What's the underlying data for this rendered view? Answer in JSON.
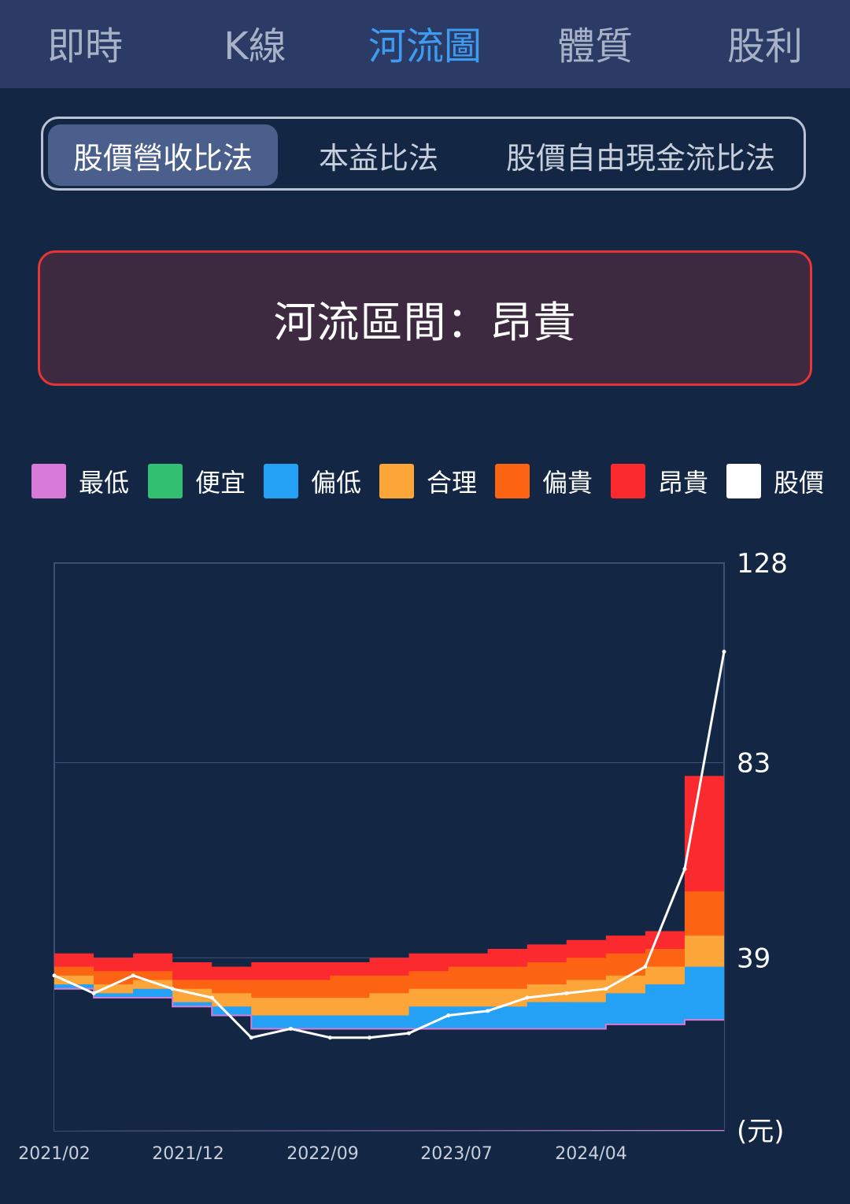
{
  "tabs": [
    {
      "label": "即時",
      "active": false
    },
    {
      "label": "K線",
      "active": false
    },
    {
      "label": "河流圖",
      "active": true
    },
    {
      "label": "體質",
      "active": false
    },
    {
      "label": "股利",
      "active": false
    }
  ],
  "methods": [
    {
      "label": "股價營收比法",
      "active": true
    },
    {
      "label": "本益比法",
      "active": false
    },
    {
      "label": "股價自由現金流比法",
      "active": false
    }
  ],
  "zone": {
    "text": "河流區間：昂貴"
  },
  "legend": [
    {
      "label": "最低",
      "color": "#d77ad8"
    },
    {
      "label": "便宜",
      "color": "#33bf72"
    },
    {
      "label": "偏低",
      "color": "#24a1f5"
    },
    {
      "label": "合理",
      "color": "#fca538"
    },
    {
      "label": "偏貴",
      "color": "#fc6313"
    },
    {
      "label": "昂貴",
      "color": "#fb2a2e"
    },
    {
      "label": "股價",
      "color": "#ffffff"
    }
  ],
  "chart_data": {
    "type": "area",
    "y_unit": "(元)",
    "ylim": [
      0,
      128
    ],
    "y_ticks": [
      128,
      83,
      39
    ],
    "x_ticks": [
      "2021/02",
      "2021/12",
      "2022/09",
      "2023/07",
      "2024/04"
    ],
    "x": [
      "2021/02",
      "2021/05",
      "2021/08",
      "2021/11",
      "2022/02",
      "2022/05",
      "2022/08",
      "2022/11",
      "2023/02",
      "2023/05",
      "2023/08",
      "2023/11",
      "2024/02",
      "2024/05",
      "2024/08",
      "2024/11",
      "2025/01",
      "2025/02"
    ],
    "series": [
      {
        "name": "最低",
        "values": [
          32,
          30,
          30,
          28,
          26,
          23,
          23,
          23,
          23,
          23,
          23,
          23,
          23,
          23,
          24,
          24,
          25,
          25
        ]
      },
      {
        "name": "便宜",
        "values": [
          32,
          30,
          30,
          28,
          26,
          23,
          23,
          23,
          23,
          23,
          23,
          23,
          23,
          23,
          24,
          24,
          25,
          25
        ]
      },
      {
        "name": "偏低",
        "values": [
          33,
          31,
          32,
          29,
          28,
          26,
          26,
          26,
          26,
          28,
          28,
          28,
          29,
          29,
          31,
          33,
          37,
          47
        ]
      },
      {
        "name": "合理",
        "values": [
          35,
          33,
          34,
          32,
          31,
          30,
          30,
          30,
          31,
          32,
          32,
          32,
          33,
          34,
          35,
          37,
          44,
          58
        ]
      },
      {
        "name": "偏貴",
        "values": [
          37,
          36,
          36,
          34,
          34,
          34,
          34,
          35,
          35,
          36,
          37,
          37,
          38,
          39,
          40,
          41,
          54,
          74
        ]
      },
      {
        "name": "昂貴",
        "values": [
          40,
          39,
          40,
          38,
          37,
          38,
          38,
          38,
          39,
          40,
          40,
          41,
          42,
          43,
          44,
          45,
          80,
          83
        ]
      },
      {
        "name": "股價",
        "values": [
          35,
          31,
          35,
          32,
          30,
          21,
          23,
          21,
          21,
          22,
          26,
          27,
          30,
          31,
          32,
          37,
          59,
          108
        ]
      }
    ]
  }
}
